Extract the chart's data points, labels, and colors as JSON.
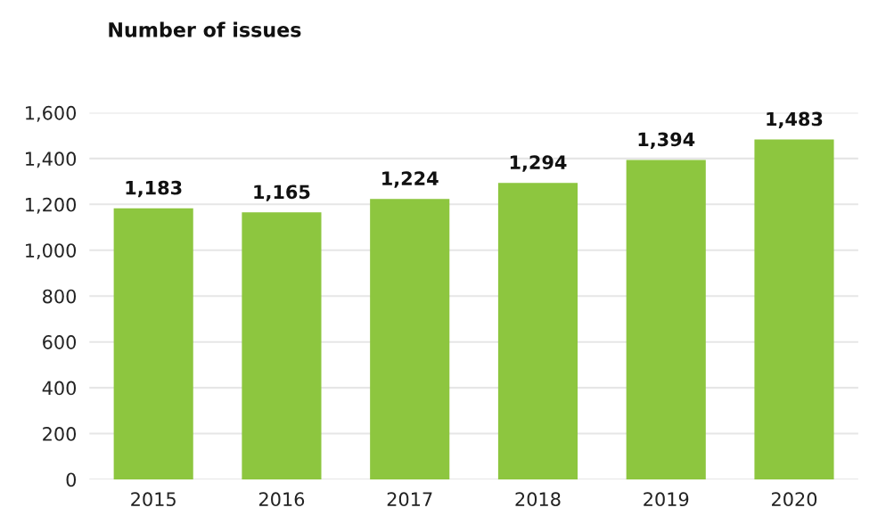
{
  "chart_data": {
    "type": "bar",
    "title": "Number of issues",
    "categories": [
      "2015",
      "2016",
      "2017",
      "2018",
      "2019",
      "2020"
    ],
    "values": [
      1183,
      1165,
      1224,
      1294,
      1394,
      1483
    ],
    "color": "#8dc63f",
    "data_labels": true,
    "value_labels": [
      "1,183",
      "1,165",
      "1,224",
      "1,294",
      "1,394",
      "1,483"
    ],
    "ylim": [
      0,
      1600
    ],
    "yticks": [
      0,
      {
        "value": 200,
        "label": "200"
      },
      {
        "value": 400,
        "label": "400"
      },
      {
        "value": 600,
        "label": "600"
      },
      {
        "value": 800,
        "label": "800"
      },
      {
        "value": 1000,
        "label": "1,000"
      },
      {
        "value": 1200,
        "label": "1,200"
      },
      {
        "value": 1400,
        "label": "1,400"
      },
      {
        "value": 1600,
        "label": "1,600"
      }
    ],
    "grid": "y",
    "legend": false
  }
}
